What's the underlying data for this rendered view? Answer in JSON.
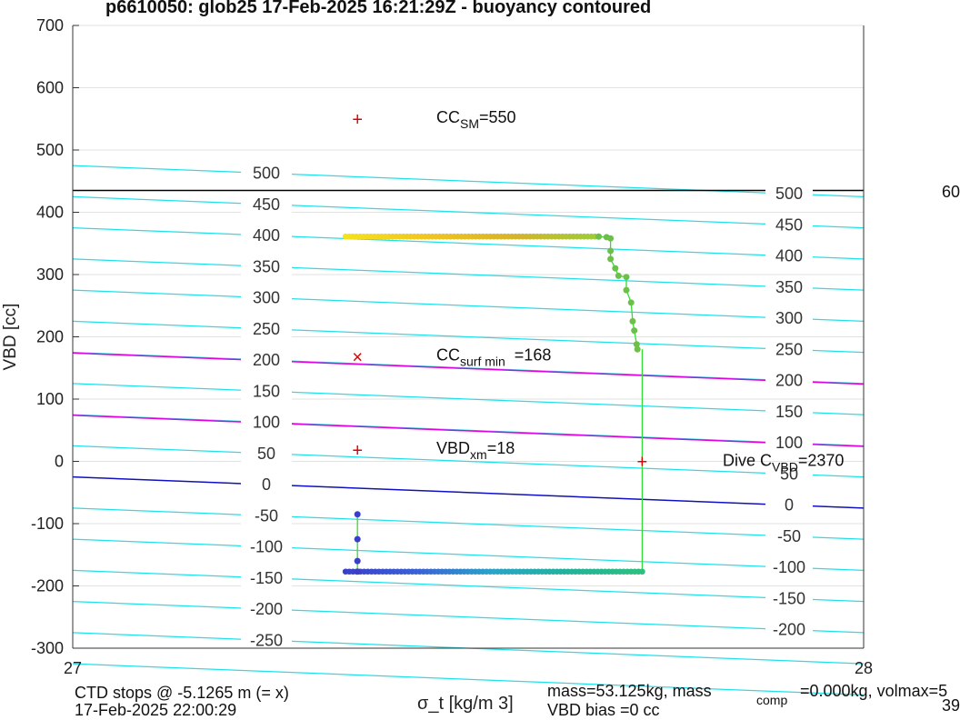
{
  "chart_data": {
    "type": "scatter",
    "title": "p6610050: glob25 17-Feb-2025 16:21:29Z - buoyancy contoured",
    "xlabel": "σ_t [kg/m 3]",
    "ylabel": "VBD [cc]",
    "xlim": [
      27,
      28
    ],
    "ylim": [
      -300,
      700
    ],
    "x_ticks": [
      "27",
      "28"
    ],
    "y_ticks": [
      "-300",
      "-200",
      "-100",
      "0",
      "100",
      "200",
      "300",
      "400",
      "500",
      "600",
      "700"
    ],
    "grid": true,
    "contour_left_labels": [
      "500",
      "450",
      "400",
      "350",
      "300",
      "250",
      "200",
      "150",
      "100",
      "50",
      "0",
      "-50",
      "-100",
      "-150",
      "-200",
      "-250"
    ],
    "contour_right_labels": [
      "500",
      "450",
      "400",
      "350",
      "300",
      "250",
      "200",
      "150",
      "100",
      "50",
      "0",
      "-50",
      "-100",
      "-150",
      "-200"
    ],
    "reference_lines": [
      {
        "name": "volmax",
        "y": 435,
        "color": "#000000"
      },
      {
        "name": "magenta_upper",
        "y0": 174,
        "y1": 124,
        "color": "#e000e0"
      },
      {
        "name": "magenta_lower",
        "y0": 74,
        "y1": 24,
        "color": "#e000e0"
      },
      {
        "name": "neutral",
        "y0": -25,
        "y1": -75,
        "color": "#1010c0"
      }
    ],
    "markers": [
      {
        "symbol": "+",
        "x": 27.36,
        "y": 550,
        "label_main": "CC",
        "label_sub": "SM",
        "label_tail": "=550"
      },
      {
        "symbol": "×",
        "x": 27.36,
        "y": 168,
        "label_main": "CC",
        "label_sub": "surf min",
        "label_tail": "=168"
      },
      {
        "symbol": "+",
        "x": 27.36,
        "y": 18,
        "label_main": "VBD",
        "label_sub": "xm",
        "label_tail": "=18"
      },
      {
        "symbol": "+",
        "x": 27.72,
        "y": 0,
        "label_main": "Dive C",
        "label_sub": "VBD",
        "label_tail": "=2370"
      }
    ],
    "series_upper": {
      "y": 361,
      "x_from": 27.345,
      "x_to": 27.665,
      "descent": [
        [
          27.665,
          361
        ],
        [
          27.675,
          360
        ],
        [
          27.68,
          358
        ],
        [
          27.68,
          338
        ],
        [
          27.68,
          325
        ],
        [
          27.686,
          310
        ],
        [
          27.69,
          298
        ],
        [
          27.7,
          296
        ],
        [
          27.7,
          275
        ],
        [
          27.706,
          255
        ],
        [
          27.708,
          225
        ],
        [
          27.71,
          210
        ],
        [
          27.713,
          188
        ],
        [
          27.714,
          180
        ]
      ],
      "colors": [
        "#f5e21a",
        "#f0c422",
        "#d6b42a",
        "#9ccc3a",
        "#6cc04a"
      ]
    },
    "series_lower": {
      "y": -177,
      "x_from": 27.345,
      "x_to": 27.72,
      "spike": [
        [
          27.36,
          -177
        ],
        [
          27.36,
          -160
        ],
        [
          27.36,
          -125
        ],
        [
          27.36,
          -85
        ]
      ],
      "colors": [
        "#3b3fc8",
        "#3a63d6",
        "#2aa4c9",
        "#22b39a",
        "#2ebf80"
      ]
    },
    "dive_line": {
      "x": 27.72,
      "y_from": -177,
      "y_to": 180
    }
  },
  "footer": {
    "ctd_stops": "CTD stops @ -5.1265 m (= x)",
    "date": "17-Feb-2025 22:00:29",
    "mass_line": "mass=53.125kg, mass",
    "comp_sub": "comp",
    "comp_tail": "=0.000kg, volmax=5",
    "vbd_bias": "VBD bias =0 cc",
    "right_cut_top": "60",
    "right_cut_bottom": "39"
  }
}
